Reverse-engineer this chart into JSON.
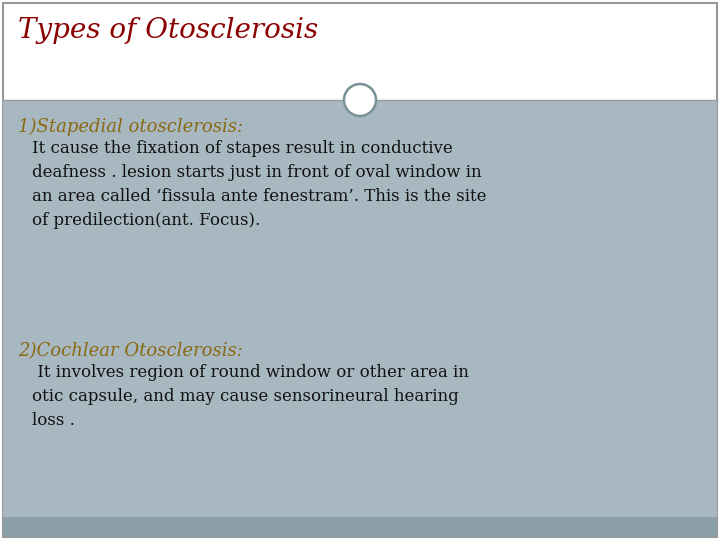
{
  "title": "Types of Otosclerosis",
  "title_color": "#8B0000",
  "header_bg": "#FFFFFF",
  "body_bg": "#A8B8C0",
  "footer_bg": "#8A9FA8",
  "heading1": "1)Stapedial otosclerosis:",
  "heading1_color": "#8B6914",
  "body1": "It cause the fixation of stapes result in conductive\ndeafness . lesion starts just in front of oval window in\nan area called ‘fissula ante fenestram’. This is the site\nof predilection(ant. Focus).",
  "body1_color": "#111111",
  "heading2": "2)Cochlear Otosclerosis:",
  "heading2_color": "#8B6914",
  "body2": " It involves region of round window or other area in\notic capsule, and may cause sensorineural hearing\nloss .",
  "body2_color": "#111111",
  "border_color": "#999999",
  "divider_color": "#999999",
  "circle_edge": "#7A8F98",
  "circle_face": "#FFFFFF"
}
